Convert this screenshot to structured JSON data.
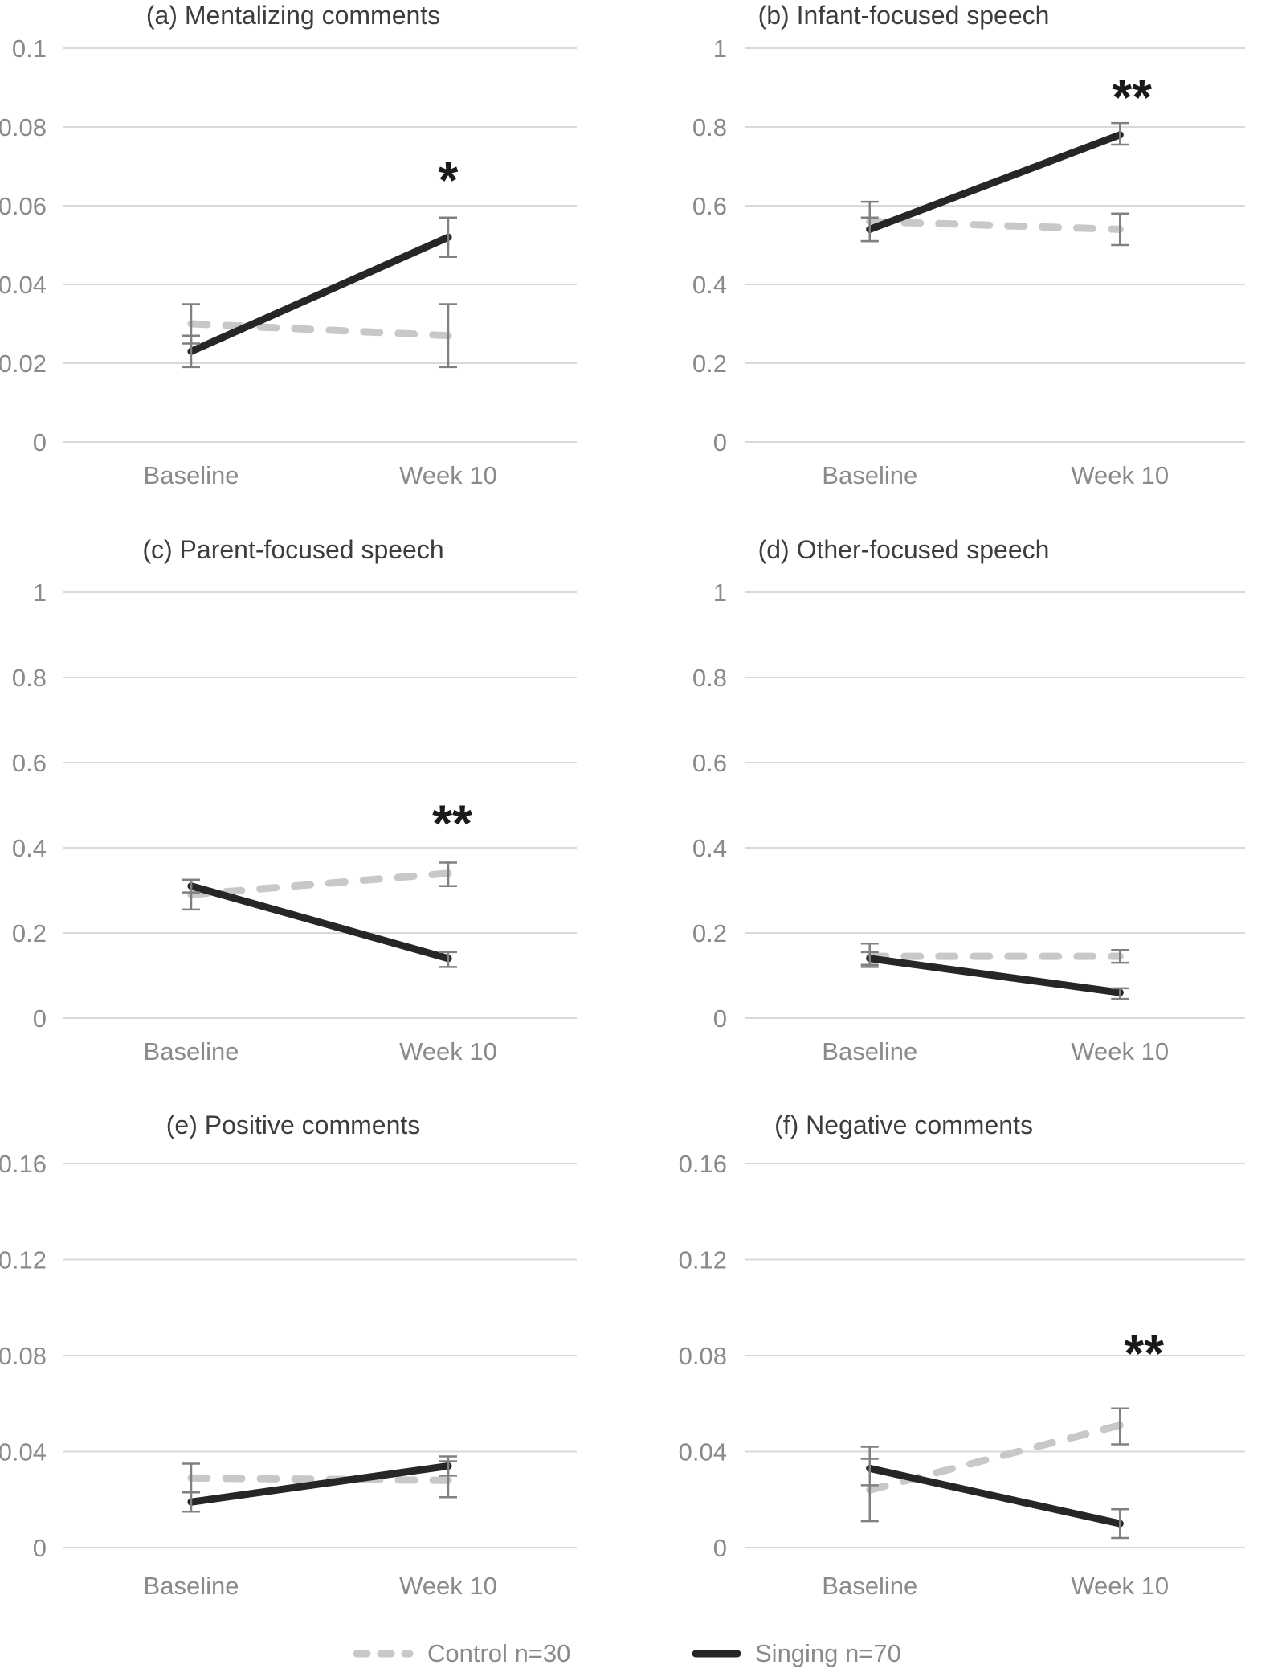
{
  "figure": {
    "x_categories": [
      "Baseline",
      "Week 10"
    ],
    "legend": [
      {
        "label": "Control n=30",
        "series": "control",
        "style": "dashed"
      },
      {
        "label": "Singing n=70",
        "series": "singing",
        "style": "solid"
      }
    ],
    "colors": {
      "background": "#ffffff",
      "singing": "#262626",
      "control": "#c8c8c8",
      "error_bar": "#808080",
      "gridline": "#d9d9d9",
      "tick_text": "#8a8a8a",
      "title_text": "#3d3d3d",
      "significance": "#1a1a1a"
    }
  },
  "chart_data": [
    {
      "type": "line",
      "panel": "a",
      "title": "(a)  Mentalizing comments",
      "categories": [
        "Baseline",
        "Week 10"
      ],
      "ylim": [
        0,
        0.1
      ],
      "ytick_values": [
        0.1,
        0.08,
        0.06,
        0.04,
        0.02,
        0
      ],
      "ytick_labels": [
        "0.1",
        "0.08",
        "0.06",
        "0.04",
        "0.02",
        "0"
      ],
      "grid": true,
      "series": [
        {
          "name": "Control n=30",
          "values": [
            0.03,
            0.027
          ],
          "error_low": [
            0.025,
            0.019
          ],
          "error_high": [
            0.035,
            0.035
          ]
        },
        {
          "name": "Singing n=70",
          "values": [
            0.023,
            0.052
          ],
          "error_low": [
            0.019,
            0.047
          ],
          "error_high": [
            0.027,
            0.057
          ]
        }
      ],
      "significance": {
        "label": "*",
        "at": "Week 10",
        "y_value": 0.069
      }
    },
    {
      "type": "line",
      "panel": "b",
      "title": "(b) Infant-focused speech",
      "categories": [
        "Baseline",
        "Week 10"
      ],
      "ylim": [
        0,
        1
      ],
      "ytick_values": [
        1,
        0.8,
        0.6,
        0.4,
        0.2,
        0
      ],
      "ytick_labels": [
        "1",
        "0.8",
        "0.6",
        "0.4",
        "0.2",
        "0"
      ],
      "grid": true,
      "series": [
        {
          "name": "Control n=30",
          "values": [
            0.56,
            0.54
          ],
          "error_low": [
            0.51,
            0.5
          ],
          "error_high": [
            0.61,
            0.58
          ]
        },
        {
          "name": "Singing n=70",
          "values": [
            0.54,
            0.78
          ],
          "error_low": [
            0.51,
            0.755
          ],
          "error_high": [
            0.57,
            0.81
          ]
        }
      ],
      "significance": {
        "label": "**",
        "at": "Week 10",
        "y_value": 0.9
      }
    },
    {
      "type": "line",
      "panel": "c",
      "title": "(c) Parent-focused speech",
      "categories": [
        "Baseline",
        "Week 10"
      ],
      "ylim": [
        0,
        1
      ],
      "ytick_values": [
        1,
        0.8,
        0.6,
        0.4,
        0.2,
        0
      ],
      "ytick_labels": [
        "1",
        "0.8",
        "0.6",
        "0.4",
        "0.2",
        "0"
      ],
      "grid": true,
      "series": [
        {
          "name": "Control n=30",
          "values": [
            0.29,
            0.34
          ],
          "error_low": [
            0.255,
            0.31
          ],
          "error_high": [
            0.325,
            0.365
          ]
        },
        {
          "name": "Singing n=70",
          "values": [
            0.31,
            0.14
          ],
          "error_low": [
            0.295,
            0.12
          ],
          "error_high": [
            0.325,
            0.155
          ]
        }
      ],
      "significance": {
        "label": "**",
        "at": "Week 10",
        "y_value": 0.48
      }
    },
    {
      "type": "line",
      "panel": "d",
      "title": "(d) Other-focused speech",
      "categories": [
        "Baseline",
        "Week 10"
      ],
      "ylim": [
        0,
        1
      ],
      "ytick_values": [
        1,
        0.8,
        0.6,
        0.4,
        0.2,
        0
      ],
      "ytick_labels": [
        "1",
        "0.8",
        "0.6",
        "0.4",
        "0.2",
        "0"
      ],
      "grid": true,
      "series": [
        {
          "name": "Control n=30",
          "values": [
            0.145,
            0.145
          ],
          "error_low": [
            0.12,
            0.13
          ],
          "error_high": [
            0.175,
            0.16
          ]
        },
        {
          "name": "Singing n=70",
          "values": [
            0.14,
            0.06
          ],
          "error_low": [
            0.125,
            0.045
          ],
          "error_high": [
            0.155,
            0.07
          ]
        }
      ],
      "significance": null
    },
    {
      "type": "line",
      "panel": "e",
      "title": "(e) Positive comments",
      "categories": [
        "Baseline",
        "Week 10"
      ],
      "ylim": [
        0,
        0.16
      ],
      "ytick_values": [
        0.16,
        0.12,
        0.08,
        0.04,
        0
      ],
      "ytick_labels": [
        "0.16",
        "0.12",
        "0.08",
        "0.04",
        "0"
      ],
      "grid": true,
      "series": [
        {
          "name": "Control n=30",
          "values": [
            0.029,
            0.028
          ],
          "error_low": [
            0.023,
            0.021
          ],
          "error_high": [
            0.035,
            0.036
          ]
        },
        {
          "name": "Singing n=70",
          "values": [
            0.019,
            0.034
          ],
          "error_low": [
            0.015,
            0.03
          ],
          "error_high": [
            0.023,
            0.038
          ]
        }
      ],
      "significance": null
    },
    {
      "type": "line",
      "panel": "f",
      "title": "(f) Negative comments",
      "categories": [
        "Baseline",
        "Week 10"
      ],
      "ylim": [
        0,
        0.16
      ],
      "ytick_values": [
        0.16,
        0.12,
        0.08,
        0.04,
        0
      ],
      "ytick_labels": [
        "0.16",
        "0.12",
        "0.08",
        "0.04",
        "0"
      ],
      "grid": true,
      "series": [
        {
          "name": "Control n=30",
          "values": [
            0.024,
            0.051
          ],
          "error_low": [
            0.011,
            0.043
          ],
          "error_high": [
            0.037,
            0.058
          ]
        },
        {
          "name": "Singing n=70",
          "values": [
            0.033,
            0.01
          ],
          "error_low": [
            0.026,
            0.004
          ],
          "error_high": [
            0.042,
            0.016
          ]
        }
      ],
      "significance": {
        "label": "**",
        "at": "Week 10",
        "y_value": 0.085
      }
    }
  ]
}
